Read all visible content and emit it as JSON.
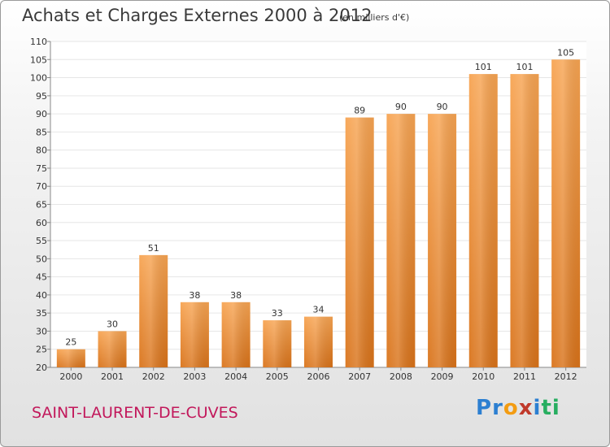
{
  "title": "Achats et Charges Externes 2000 à 2012",
  "unit_note": "(en milliers d'€)",
  "location": "SAINT-LAURENT-DE-CUVES",
  "logo": {
    "text": "Proxiti",
    "letters": [
      "P",
      "r",
      "o",
      "x",
      "i",
      "t",
      "i"
    ],
    "colors": [
      "#2c7fd1",
      "#2c7fd1",
      "#f39c12",
      "#c0392b",
      "#2c7fd1",
      "#27ae60",
      "#27ae60"
    ]
  },
  "colors": {
    "bar_top": "#f7a452",
    "bar_bottom": "#d9731a",
    "grid": "#e6e6e6",
    "title": "#3a3a3a",
    "location": "#c2185b"
  },
  "chart_data": {
    "type": "bar",
    "categories": [
      "2000",
      "2001",
      "2002",
      "2003",
      "2004",
      "2005",
      "2006",
      "2007",
      "2008",
      "2009",
      "2010",
      "2011",
      "2012"
    ],
    "values": [
      25,
      30,
      51,
      38,
      38,
      33,
      34,
      89,
      90,
      90,
      101,
      101,
      105
    ],
    "ylim": [
      20,
      110
    ],
    "yticks": [
      20,
      25,
      30,
      35,
      40,
      45,
      50,
      55,
      60,
      65,
      70,
      75,
      80,
      85,
      90,
      95,
      100,
      105,
      110
    ],
    "grid": true,
    "xlabel": "",
    "ylabel": ""
  }
}
